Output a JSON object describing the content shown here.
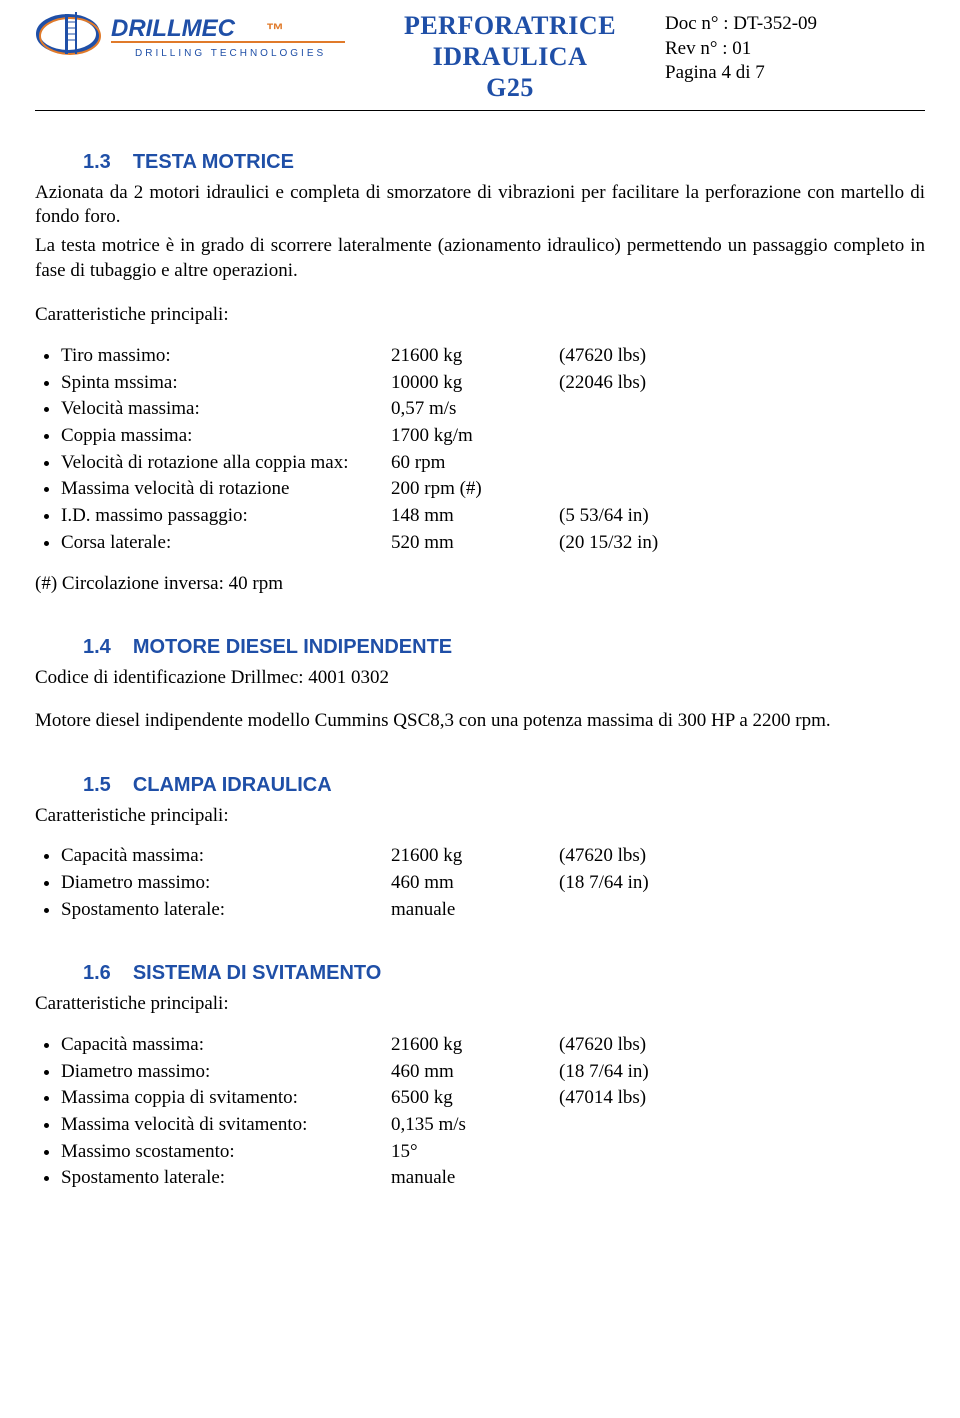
{
  "header": {
    "title_line1": "PERFORATRICE",
    "title_line2": "IDRAULICA",
    "title_line3": "G25",
    "doc_no_label": "Doc n° :",
    "doc_no": "DT-352-09",
    "rev_label": "Rev n° :",
    "rev": "01",
    "page_label": "Pagina 4 di 7",
    "logo": {
      "brand": "DRILLMEC",
      "tagline": "DRILLING TECHNOLOGIES",
      "brand_color": "#1f4fa7",
      "accent_color": "#e07a2a",
      "tagline_color": "#1f4fa7"
    }
  },
  "sections": {
    "s13": {
      "num": "1.3",
      "title": "TESTA MOTRICE",
      "p1": "Azionata da 2 motori idraulici e completa di smorzatore di vibrazioni per facilitare la perforazione con martello di fondo foro.",
      "p2": "La testa motrice è in grado di scorrere lateralmente (azionamento idraulico) permettendo un passaggio completo in fase di tubaggio e altre operazioni.",
      "char_label": "Caratteristiche principali:",
      "specs": [
        {
          "label": "Tiro massimo:",
          "val": "21600 kg",
          "alt": "(47620 lbs)"
        },
        {
          "label": "Spinta mssima:",
          "val": "10000 kg",
          "alt": "(22046 lbs)"
        },
        {
          "label": "Velocità massima:",
          "val": "0,57 m/s",
          "alt": ""
        },
        {
          "label": "Coppia massima:",
          "val": "1700 kg/m",
          "alt": ""
        },
        {
          "label": "Velocità di rotazione alla coppia max:",
          "val": "60 rpm",
          "alt": ""
        },
        {
          "label": "Massima velocità di rotazione",
          "val": "200 rpm (#)",
          "alt": ""
        },
        {
          "label": "I.D. massimo passaggio:",
          "val": "148 mm",
          "alt": "(5 53/64 in)"
        },
        {
          "label": "Corsa laterale:",
          "val": "520 mm",
          "alt": "(20 15/32 in)"
        }
      ],
      "footnote": "(#) Circolazione inversa: 40 rpm"
    },
    "s14": {
      "num": "1.4",
      "title": "MOTORE DIESEL INDIPENDENTE",
      "codice": "Codice di identificazione Drillmec: 4001 0302",
      "p1": "Motore diesel indipendente modello Cummins QSC8,3 con una potenza massima di 300 HP a 2200 rpm."
    },
    "s15": {
      "num": "1.5",
      "title": "CLAMPA IDRAULICA",
      "char_label": "Caratteristiche principali:",
      "specs": [
        {
          "label": "Capacità massima:",
          "val": "21600 kg",
          "alt": "(47620 lbs)"
        },
        {
          "label": "Diametro massimo:",
          "val": "460 mm",
          "alt": "(18 7/64 in)"
        },
        {
          "label": "Spostamento laterale:",
          "val": "manuale",
          "alt": ""
        }
      ]
    },
    "s16": {
      "num": "1.6",
      "title": "SISTEMA DI SVITAMENTO",
      "char_label": "Caratteristiche principali:",
      "specs": [
        {
          "label": "Capacità massima:",
          "val": "21600 kg",
          "alt": "(47620 lbs)"
        },
        {
          "label": "Diametro massimo:",
          "val": "460 mm",
          "alt": "(18 7/64 in)"
        },
        {
          "label": "Massima coppia di svitamento:",
          "val": "6500 kg",
          "alt": "(47014 lbs)"
        },
        {
          "label": "Massima velocità di svitamento:",
          "val": "0,135 m/s",
          "alt": ""
        },
        {
          "label": "Massimo scostamento:",
          "val": "15°",
          "alt": ""
        },
        {
          "label": "Spostamento laterale:",
          "val": "manuale",
          "alt": ""
        }
      ]
    }
  }
}
